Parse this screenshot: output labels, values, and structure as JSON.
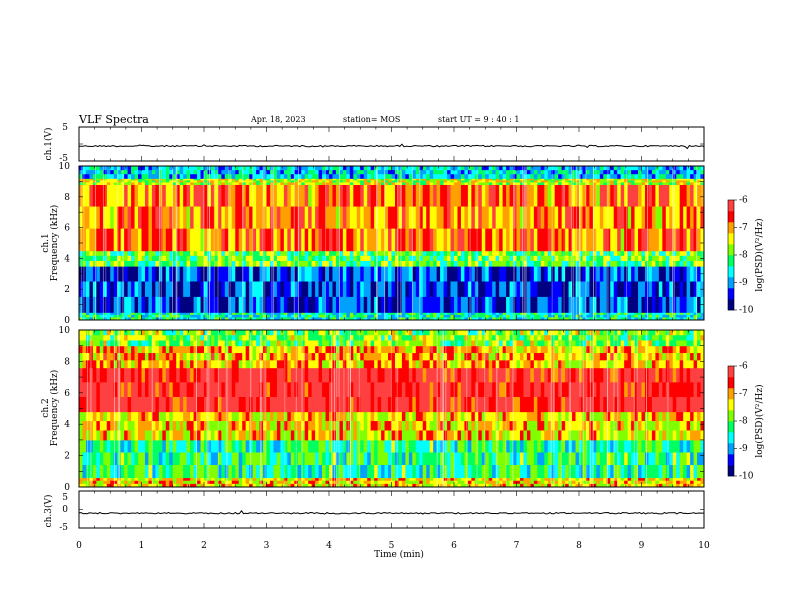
{
  "header": {
    "title": "VLF Spectra",
    "date": "Apr. 18, 2023",
    "station": "station= MOS",
    "start": "start  UT =   9 : 40 : 1"
  },
  "chart_data": [
    {
      "type": "line",
      "panel": "ch1-waveform",
      "ylabel": "ch.1(V)",
      "ylim": [
        -5,
        5
      ],
      "yticks": [
        "5",
        "-5"
      ],
      "xlim": [
        0,
        10
      ],
      "series": [
        {
          "values_approx": -0.6
        }
      ]
    },
    {
      "type": "heatmap",
      "panel": "ch1-spectrogram",
      "ylabel": "ch.1\nFrequency (kHz)",
      "ylim": [
        0,
        10
      ],
      "yticks": [
        "0",
        "2",
        "4",
        "6",
        "8",
        "10"
      ],
      "xlim": [
        0,
        10
      ],
      "bands": [
        {
          "from": 0.0,
          "to": 0.5,
          "level": -8.5
        },
        {
          "from": 0.5,
          "to": 3.5,
          "level": -9.5
        },
        {
          "from": 3.5,
          "to": 4.5,
          "level": -8.0
        },
        {
          "from": 4.5,
          "to": 8.8,
          "level": -6.8
        },
        {
          "from": 8.8,
          "to": 9.2,
          "level": -7.5
        },
        {
          "from": 9.2,
          "to": 10.0,
          "level": -8.8
        }
      ],
      "colorbar": {
        "label": "log(PSD)(V²/Hz)",
        "range": [
          -10,
          -6
        ],
        "ticks": [
          "-6",
          "-7",
          "-8",
          "-9",
          "-10"
        ]
      }
    },
    {
      "type": "heatmap",
      "panel": "ch2-spectrogram",
      "ylabel": "ch.2\nFrequency (kHz)",
      "ylim": [
        0,
        10
      ],
      "yticks": [
        "0",
        "2",
        "4",
        "6",
        "8",
        "10"
      ],
      "xlim": [
        0,
        10
      ],
      "bands": [
        {
          "from": 0.0,
          "to": 0.6,
          "level": -7.2
        },
        {
          "from": 0.6,
          "to": 3.0,
          "level": -8.3
        },
        {
          "from": 3.0,
          "to": 4.8,
          "level": -7.2
        },
        {
          "from": 4.8,
          "to": 7.6,
          "level": -6.0
        },
        {
          "from": 7.6,
          "to": 9.0,
          "level": -7.0
        },
        {
          "from": 9.0,
          "to": 10.0,
          "level": -7.8
        }
      ],
      "colorbar": {
        "label": "log(PSD)(V²/Hz)",
        "range": [
          -10,
          -6
        ],
        "ticks": [
          "-6",
          "-7",
          "-8",
          "-9",
          "-10"
        ]
      }
    },
    {
      "type": "line",
      "panel": "ch3-waveform",
      "ylabel": "ch.3(V)",
      "ylim": [
        -5,
        5
      ],
      "yticks": [
        "5",
        "0",
        "-5"
      ],
      "xlim": [
        0,
        10
      ],
      "series": [
        {
          "values_approx": -1.0
        }
      ]
    }
  ],
  "x_axis": {
    "label": "Time  (min)",
    "ticks": [
      "0",
      "1",
      "2",
      "3",
      "4",
      "5",
      "6",
      "7",
      "8",
      "9",
      "10"
    ]
  },
  "colors": {
    "colormap": [
      "#000080",
      "#0000ff",
      "#00a0ff",
      "#00ffff",
      "#00ff60",
      "#80ff00",
      "#ffff00",
      "#ffa000",
      "#ff0000",
      "#ff4040"
    ],
    "trace": "#000000"
  }
}
